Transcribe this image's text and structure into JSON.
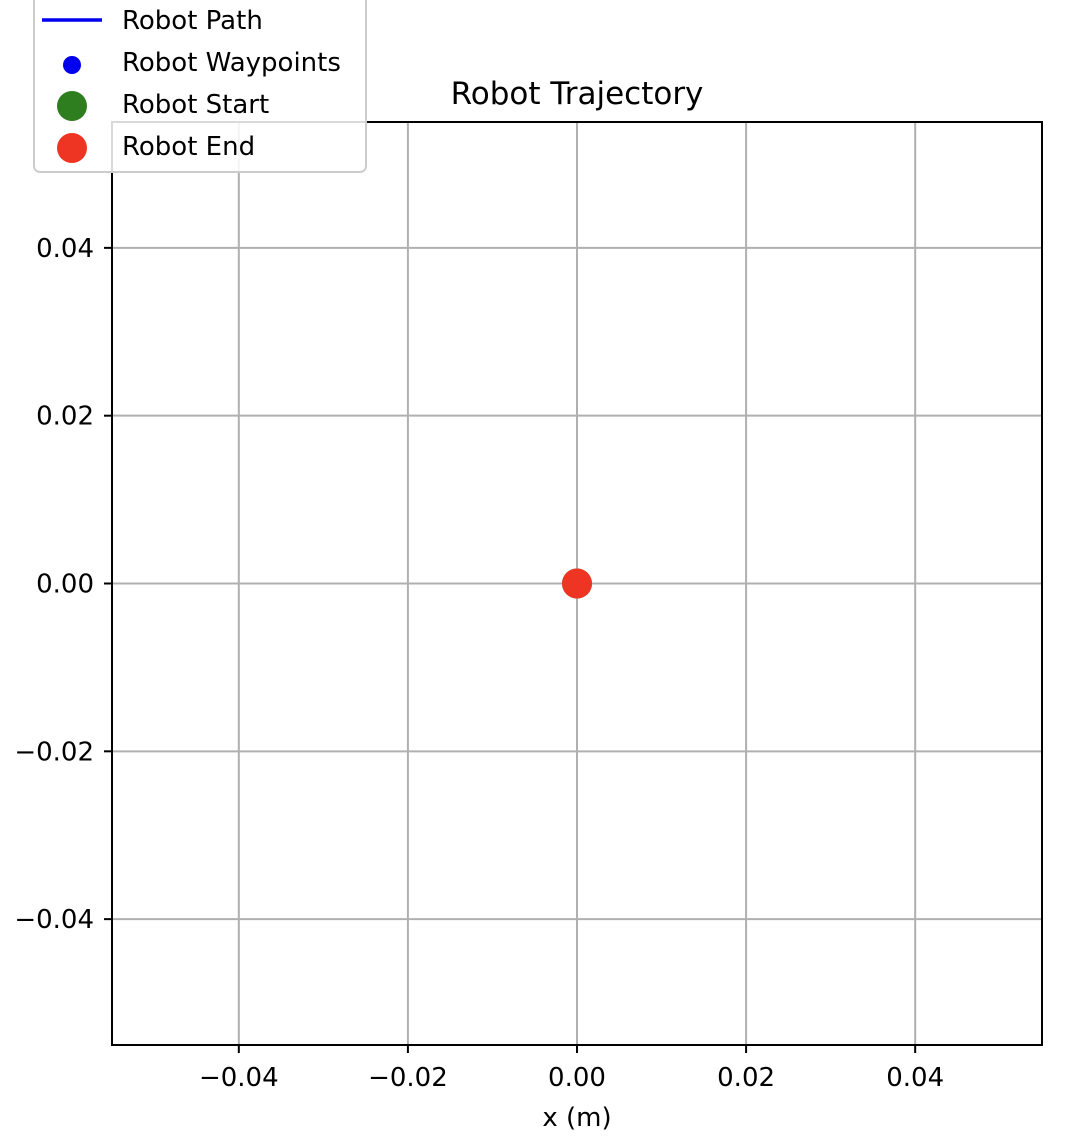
{
  "chart_data": {
    "type": "line",
    "title": "Robot Trajectory",
    "xlabel": "x (m)",
    "ylabel": "",
    "xlim": [
      -0.055,
      0.055
    ],
    "ylim": [
      -0.055,
      0.055
    ],
    "grid": true,
    "legend_position": "top-left",
    "x_ticks": [
      -0.04,
      -0.02,
      0.0,
      0.02,
      0.04
    ],
    "y_ticks": [
      -0.04,
      -0.02,
      0.0,
      0.02,
      0.04
    ],
    "x_tick_labels": [
      "−0.04",
      "−0.02",
      "0.00",
      "0.02",
      "0.04"
    ],
    "y_tick_labels": [
      "−0.04",
      "−0.02",
      "0.00",
      "0.02",
      "0.04"
    ],
    "series": [
      {
        "name": "Robot Path",
        "kind": "line",
        "color": "#0000ee",
        "points": [
          [
            0.0,
            0.0
          ]
        ]
      },
      {
        "name": "Robot Waypoints",
        "kind": "scatter",
        "color": "#0000ee",
        "points": [
          [
            0.0,
            0.0
          ]
        ]
      },
      {
        "name": "Robot Start",
        "kind": "marker",
        "color": "#2e7d1f",
        "points": [
          [
            0.0,
            0.0
          ]
        ]
      },
      {
        "name": "Robot End",
        "kind": "marker",
        "color": "#ee3524",
        "points": [
          [
            0.0,
            0.0
          ]
        ]
      }
    ]
  }
}
